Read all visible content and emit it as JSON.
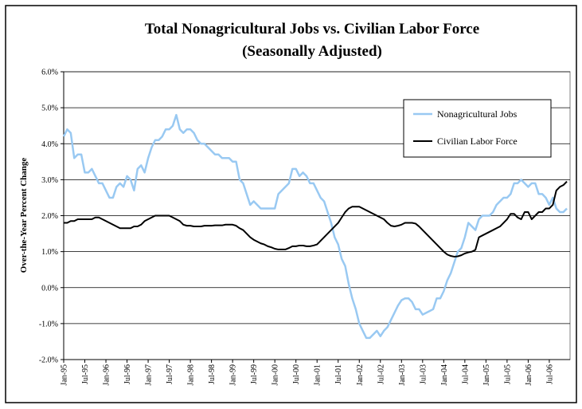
{
  "chart_data": {
    "type": "line",
    "title": "Total Nonagricultural Jobs vs. Civilian Labor Force",
    "subtitle": "(Seasonally Adjusted)",
    "y_label": "Over-the-Year Percent Change",
    "categories": [
      "Jan-95",
      null,
      null,
      null,
      null,
      null,
      "Jul-95",
      null,
      null,
      null,
      null,
      null,
      "Jan-96",
      null,
      null,
      null,
      null,
      null,
      "Jul-96",
      null,
      null,
      null,
      null,
      null,
      "Jan-97",
      null,
      null,
      null,
      null,
      null,
      "Jul-97",
      null,
      null,
      null,
      null,
      null,
      "Jan-98",
      null,
      null,
      null,
      null,
      null,
      "Jul-98",
      null,
      null,
      null,
      null,
      null,
      "Jan-99",
      null,
      null,
      null,
      null,
      null,
      "Jul-99",
      null,
      null,
      null,
      null,
      null,
      "Jan-00",
      null,
      null,
      null,
      null,
      null,
      "Jul-00",
      null,
      null,
      null,
      null,
      null,
      "Jan-01",
      null,
      null,
      null,
      null,
      null,
      "Jul-01",
      null,
      null,
      null,
      null,
      null,
      "Jan-02",
      null,
      null,
      null,
      null,
      null,
      "Jul-02",
      null,
      null,
      null,
      null,
      null,
      "Jan-03",
      null,
      null,
      null,
      null,
      null,
      "Jul-03",
      null,
      null,
      null,
      null,
      null,
      "Jan-04",
      null,
      null,
      null,
      null,
      null,
      "Jul-04",
      null,
      null,
      null,
      null,
      null,
      "Jan-05",
      null,
      null,
      null,
      null,
      null,
      "Jul-05",
      null,
      null,
      null,
      null,
      null,
      "Jan-06",
      null,
      null,
      null,
      null,
      null,
      "Jul-06",
      null,
      null,
      null,
      null,
      null
    ],
    "series": [
      {
        "name": "Nonagricultural Jobs",
        "color": "#99c9f2",
        "values": [
          4.2,
          4.4,
          4.3,
          3.6,
          3.7,
          3.7,
          3.2,
          3.2,
          3.3,
          3.1,
          2.9,
          2.9,
          2.7,
          2.5,
          2.5,
          2.8,
          2.9,
          2.8,
          3.1,
          3.0,
          2.7,
          3.3,
          3.4,
          3.2,
          3.6,
          3.9,
          4.1,
          4.1,
          4.2,
          4.4,
          4.4,
          4.5,
          4.8,
          4.4,
          4.3,
          4.4,
          4.4,
          4.3,
          4.1,
          4.0,
          4.0,
          3.9,
          3.8,
          3.7,
          3.7,
          3.6,
          3.6,
          3.6,
          3.5,
          3.5,
          3.0,
          2.9,
          2.6,
          2.3,
          2.4,
          2.3,
          2.2,
          2.2,
          2.2,
          2.2,
          2.2,
          2.6,
          2.7,
          2.8,
          2.9,
          3.3,
          3.3,
          3.1,
          3.2,
          3.1,
          2.9,
          2.9,
          2.7,
          2.5,
          2.4,
          2.1,
          1.8,
          1.4,
          1.2,
          0.8,
          0.6,
          0.1,
          -0.3,
          -0.6,
          -1.0,
          -1.2,
          -1.4,
          -1.4,
          -1.3,
          -1.2,
          -1.35,
          -1.2,
          -1.1,
          -0.9,
          -0.7,
          -0.5,
          -0.35,
          -0.3,
          -0.3,
          -0.4,
          -0.6,
          -0.6,
          -0.75,
          -0.7,
          -0.65,
          -0.6,
          -0.3,
          -0.3,
          -0.1,
          0.2,
          0.4,
          0.7,
          1.0,
          1.1,
          1.4,
          1.8,
          1.7,
          1.6,
          1.9,
          2.0,
          2.0,
          2.0,
          2.1,
          2.3,
          2.4,
          2.5,
          2.5,
          2.6,
          2.9,
          2.9,
          3.0,
          2.9,
          2.8,
          2.9,
          2.9,
          2.6,
          2.6,
          2.5,
          2.3,
          2.5,
          2.2,
          2.1,
          2.1,
          2.2
        ]
      },
      {
        "name": "Civilian Labor Force",
        "color": "#000000",
        "values": [
          1.8,
          1.8,
          1.85,
          1.85,
          1.9,
          1.9,
          1.9,
          1.9,
          1.9,
          1.95,
          1.95,
          1.9,
          1.85,
          1.8,
          1.75,
          1.7,
          1.65,
          1.65,
          1.65,
          1.65,
          1.7,
          1.7,
          1.75,
          1.85,
          1.9,
          1.95,
          2.0,
          2.0,
          2.0,
          2.0,
          2.0,
          1.95,
          1.9,
          1.85,
          1.75,
          1.72,
          1.72,
          1.7,
          1.7,
          1.7,
          1.72,
          1.72,
          1.72,
          1.73,
          1.73,
          1.73,
          1.75,
          1.75,
          1.75,
          1.72,
          1.65,
          1.6,
          1.5,
          1.4,
          1.33,
          1.28,
          1.23,
          1.2,
          1.15,
          1.12,
          1.08,
          1.06,
          1.06,
          1.06,
          1.1,
          1.15,
          1.15,
          1.17,
          1.17,
          1.15,
          1.15,
          1.17,
          1.2,
          1.3,
          1.4,
          1.5,
          1.6,
          1.7,
          1.8,
          1.95,
          2.1,
          2.2,
          2.25,
          2.25,
          2.25,
          2.2,
          2.15,
          2.1,
          2.05,
          2.0,
          1.95,
          1.9,
          1.8,
          1.72,
          1.7,
          1.72,
          1.75,
          1.8,
          1.8,
          1.8,
          1.78,
          1.7,
          1.6,
          1.5,
          1.4,
          1.3,
          1.2,
          1.1,
          1.0,
          0.92,
          0.88,
          0.86,
          0.87,
          0.9,
          0.95,
          0.98,
          1.0,
          1.05,
          1.4,
          1.45,
          1.5,
          1.55,
          1.6,
          1.65,
          1.7,
          1.8,
          1.9,
          2.05,
          2.05,
          1.95,
          1.9,
          2.1,
          2.1,
          1.9,
          2.0,
          2.1,
          2.1,
          2.2,
          2.2,
          2.3,
          2.7,
          2.8,
          2.85,
          2.95
        ]
      }
    ],
    "ylim": [
      -2,
      6
    ],
    "yticks": [
      {
        "value": -2,
        "label": "-2.0%"
      },
      {
        "value": -1,
        "label": "-1.0%"
      },
      {
        "value": 0,
        "label": "0.0%"
      },
      {
        "value": 1,
        "label": "1.0%"
      },
      {
        "value": 2,
        "label": "2.0%"
      },
      {
        "value": 3,
        "label": "3.0%"
      },
      {
        "value": 4,
        "label": "4.0%"
      },
      {
        "value": 5,
        "label": "5.0%"
      },
      {
        "value": 6,
        "label": "6.0%"
      }
    ],
    "grid": true,
    "legend": "upper right"
  }
}
